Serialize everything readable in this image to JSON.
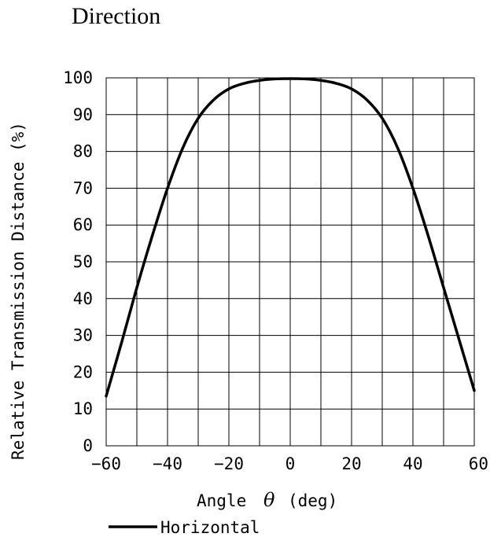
{
  "title": "Direction",
  "chart_data": {
    "type": "line",
    "xlabel_prefix": "Angle",
    "xlabel_symbol": "θ",
    "xlabel_suffix": "(deg)",
    "ylabel": "Relative Transmission Distance (%)",
    "xlim": [
      -60,
      60
    ],
    "ylim": [
      0,
      100
    ],
    "x_ticks": [
      -60,
      -40,
      -20,
      0,
      20,
      40,
      60
    ],
    "y_ticks": [
      0,
      10,
      20,
      30,
      40,
      50,
      60,
      70,
      80,
      90,
      100
    ],
    "x_tick_labels": [
      "−60",
      "−40",
      "−20",
      "0",
      "20",
      "40",
      "60"
    ],
    "y_tick_labels": [
      "0",
      "10",
      "20",
      "30",
      "40",
      "50",
      "60",
      "70",
      "80",
      "90",
      "100"
    ],
    "grid": true,
    "legend_position": "bottom-left",
    "line_color": "#000000",
    "series": [
      {
        "name": "Horizontal",
        "x": [
          -60,
          -55,
          -50,
          -45,
          -40,
          -35,
          -30,
          -25,
          -20,
          -15,
          -10,
          -5,
          0,
          5,
          10,
          15,
          20,
          25,
          30,
          35,
          40,
          45,
          50,
          55,
          60
        ],
        "y": [
          13.5,
          28,
          43,
          57,
          70,
          81,
          89,
          94,
          97,
          98.5,
          99.3,
          99.7,
          99.8,
          99.7,
          99.3,
          98.5,
          97,
          94,
          89,
          81,
          70,
          57,
          43,
          29,
          15
        ]
      }
    ]
  }
}
